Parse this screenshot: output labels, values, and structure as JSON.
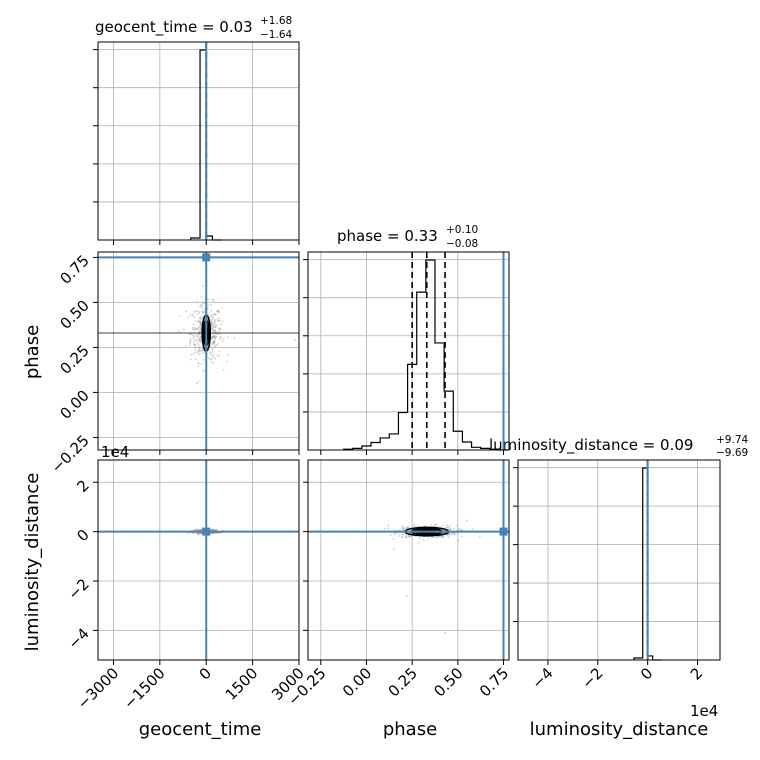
{
  "chart_data": {
    "type": "corner",
    "parameters": [
      {
        "name": "geocent_time",
        "axis_label": "geocent_time",
        "title_prefix": "geocent_time = ",
        "median": "0.03",
        "upper": "+1.68",
        "lower": "−1.64",
        "range": [
          -3500,
          3000
        ],
        "ticks": [
          -3000,
          -1500,
          0,
          1500,
          3000
        ],
        "tick_labels": [
          "−3000",
          "−1500",
          "0",
          "1500",
          "3000"
        ],
        "truth": 0,
        "quantiles": [
          -1.61,
          0.03,
          1.71
        ],
        "offset_text": ""
      },
      {
        "name": "phase",
        "axis_label": "phase",
        "title_prefix": "phase = ",
        "median": "0.33",
        "upper": "+0.10",
        "lower": "−0.08",
        "range": [
          -0.32,
          0.78
        ],
        "ticks": [
          -0.25,
          0.0,
          0.25,
          0.5,
          0.75
        ],
        "tick_labels": [
          "−0.25",
          "0.00",
          "0.25",
          "0.50",
          "0.75"
        ],
        "truth": 0.75,
        "quantiles": [
          0.25,
          0.33,
          0.43
        ],
        "offset_text": ""
      },
      {
        "name": "luminosity_distance",
        "axis_label": "luminosity_distance",
        "title_prefix": "luminosity_distance = ",
        "median": "0.09",
        "upper": "+9.74",
        "lower": "−9.69",
        "range": [
          -5.2,
          2.9
        ],
        "ticks": [
          -4,
          -2,
          0,
          2
        ],
        "tick_labels": [
          "−4",
          "−2",
          "0",
          "2"
        ],
        "truth": 0.0,
        "quantiles": [
          -0.00096,
          9e-06,
          0.000983
        ],
        "offset_text": "1e4"
      }
    ],
    "histograms": [
      {
        "param": "geocent_time",
        "bin_edges": [
          -500,
          -200,
          0,
          200,
          500
        ],
        "counts": [
          1,
          95,
          2,
          0
        ]
      },
      {
        "param": "phase",
        "bin_edges": [
          -0.125,
          -0.075,
          -0.025,
          0.025,
          0.075,
          0.125,
          0.175,
          0.225,
          0.275,
          0.325,
          0.375,
          0.425,
          0.475,
          0.525,
          0.575,
          0.625,
          0.675,
          0.725,
          0.775
        ],
        "counts": [
          0.3,
          0.6,
          1.5,
          2.8,
          4.5,
          6,
          14,
          32,
          59,
          71,
          40,
          22,
          7,
          3,
          1,
          0.6,
          0.3,
          0
        ]
      },
      {
        "param": "luminosity_distance",
        "bin_edges": [
          -0.55,
          -0.2,
          0,
          0.2,
          0.55
        ],
        "counts": [
          1,
          95,
          2,
          0
        ]
      }
    ],
    "scatter_panels": [
      {
        "x": "geocent_time",
        "y": "phase",
        "center": [
          0,
          0.33
        ],
        "spread": [
          250,
          0.08
        ],
        "outliers": [
          [
            -650,
            0.45
          ],
          [
            -520,
            0.28
          ],
          [
            480,
            0.38
          ],
          [
            700,
            0.21
          ],
          [
            -300,
            0.05
          ],
          [
            900,
            0.3
          ],
          [
            -900,
            0.34
          ],
          [
            2880,
            0.29
          ]
        ],
        "contour_half_width": [
          130,
          0.1
        ]
      },
      {
        "x": "phase",
        "y": "luminosity_distance",
        "center": [
          0.33,
          0.0
        ],
        "spread": [
          0.08,
          0.12
        ],
        "outliers": [
          [
            0.15,
            -0.7
          ],
          [
            0.5,
            -0.35
          ],
          [
            0.43,
            -4.1
          ],
          [
            0.22,
            -2.6
          ],
          [
            0.55,
            0.45
          ],
          [
            0.12,
            0.25
          ],
          [
            0.62,
            -0.2
          ]
        ],
        "contour_half_width": [
          0.12,
          0.17
        ]
      },
      {
        "x": "geocent_time",
        "y": "luminosity_distance",
        "center": [
          0,
          0.0
        ],
        "spread": [
          200,
          0.04
        ],
        "outliers": [
          [
            -500,
            0.02
          ],
          [
            400,
            -0.03
          ],
          [
            -200,
            -0.05
          ]
        ],
        "contour_half_width": [
          80,
          0.06
        ]
      }
    ],
    "grid": true
  }
}
